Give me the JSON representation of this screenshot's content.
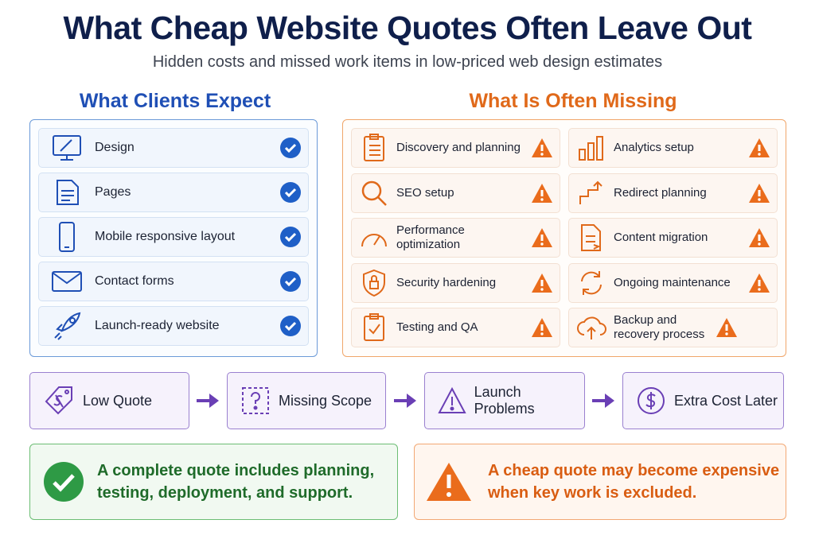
{
  "header": {
    "title": "What Cheap Website Quotes Often Leave Out",
    "subtitle": "Hidden costs and missed work items in low-priced web design estimates"
  },
  "expect": {
    "heading": "What Clients Expect",
    "items": [
      "Design",
      "Pages",
      "Mobile responsive layout",
      "Contact forms",
      "Launch-ready website"
    ]
  },
  "missing": {
    "heading": "What Is Often Missing",
    "items": [
      "Discovery and planning",
      "Analytics setup",
      "SEO setup",
      "Redirect planning",
      "Performance optimization",
      "Content migration",
      "Security hardening",
      "Ongoing maintenance",
      "Testing and QA",
      "Backup and recovery process"
    ]
  },
  "flow": {
    "steps": [
      "Low Quote",
      "Missing Scope",
      "Launch Problems",
      "Extra Cost Later"
    ]
  },
  "notes": {
    "complete": "A complete quote includes planning, testing, deployment, and support.",
    "warning": "A cheap quote may become expensive when key work is excluded."
  }
}
